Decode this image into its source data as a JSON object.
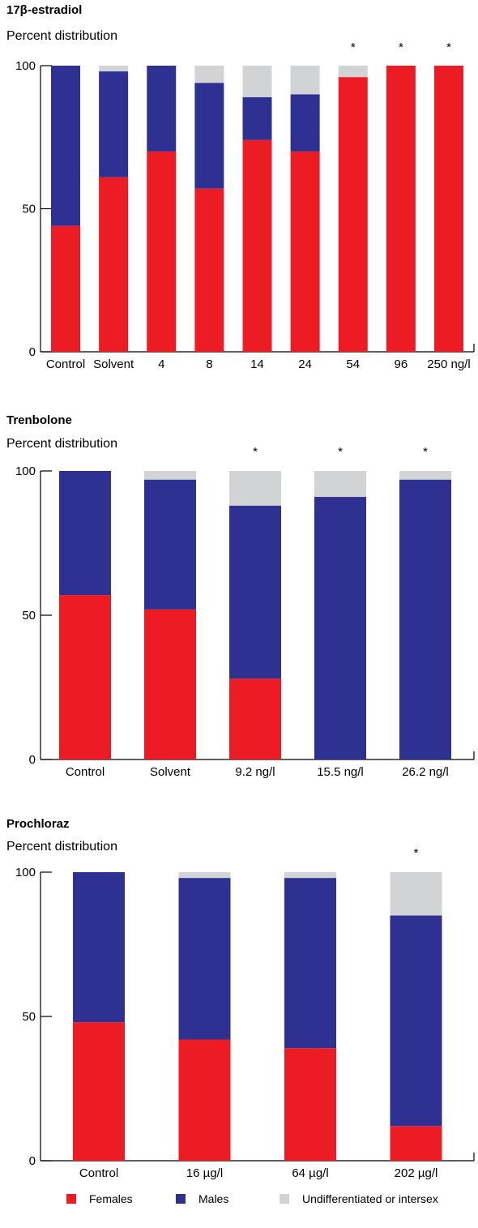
{
  "colors": {
    "females": "#ED1C24",
    "males": "#2E3192",
    "undiff": "#D1D3D4"
  },
  "legend": {
    "females": "Females",
    "males": "Males",
    "undiff": "Undifferentiated or intersex"
  },
  "chart_data": [
    {
      "type": "bar",
      "stacked": true,
      "title": "17β-estradiol",
      "ylabel": "Percent distribution",
      "ylim": [
        0,
        100
      ],
      "yticks": [
        "0",
        "50",
        "100"
      ],
      "categories": [
        "Control",
        "Solvent",
        "4",
        "8",
        "14",
        "24",
        "54",
        "96",
        "250 ng/l"
      ],
      "significant": [
        false,
        false,
        false,
        false,
        false,
        false,
        true,
        true,
        true
      ],
      "series": [
        {
          "key": "females",
          "name": "Females",
          "values": [
            44,
            61,
            70,
            57,
            74,
            70,
            96,
            100,
            100
          ]
        },
        {
          "key": "males",
          "name": "Males",
          "values": [
            56,
            37,
            30,
            37,
            15,
            20,
            0,
            0,
            0
          ]
        },
        {
          "key": "undiff",
          "name": "Undifferentiated or intersex",
          "values": [
            0,
            2,
            0,
            6,
            11,
            10,
            4,
            0,
            0
          ]
        }
      ]
    },
    {
      "type": "bar",
      "stacked": true,
      "title": "Trenbolone",
      "ylabel": "Percent distribution",
      "ylim": [
        0,
        100
      ],
      "yticks": [
        "0",
        "50",
        "100"
      ],
      "categories": [
        "Control",
        "Solvent",
        "9.2 ng/l",
        "15.5 ng/l",
        "26.2 ng/l"
      ],
      "significant": [
        false,
        false,
        true,
        true,
        true
      ],
      "series": [
        {
          "key": "females",
          "name": "Females",
          "values": [
            57,
            52,
            28,
            0,
            0
          ]
        },
        {
          "key": "males",
          "name": "Males",
          "values": [
            43,
            45,
            60,
            91,
            97
          ]
        },
        {
          "key": "undiff",
          "name": "Undifferentiated or intersex",
          "values": [
            0,
            3,
            12,
            9,
            3
          ]
        }
      ]
    },
    {
      "type": "bar",
      "stacked": true,
      "title": "Prochloraz",
      "ylabel": "Percent distribution",
      "ylim": [
        0,
        100
      ],
      "yticks": [
        "0",
        "50",
        "100"
      ],
      "categories": [
        "Control",
        "16 µg/l",
        "64 µg/l",
        "202 µg/l"
      ],
      "significant": [
        false,
        false,
        false,
        true
      ],
      "series": [
        {
          "key": "females",
          "name": "Females",
          "values": [
            48,
            42,
            39,
            12
          ]
        },
        {
          "key": "males",
          "name": "Males",
          "values": [
            52,
            56,
            59,
            73
          ]
        },
        {
          "key": "undiff",
          "name": "Undifferentiated or intersex",
          "values": [
            0,
            2,
            2,
            15
          ]
        }
      ]
    }
  ]
}
